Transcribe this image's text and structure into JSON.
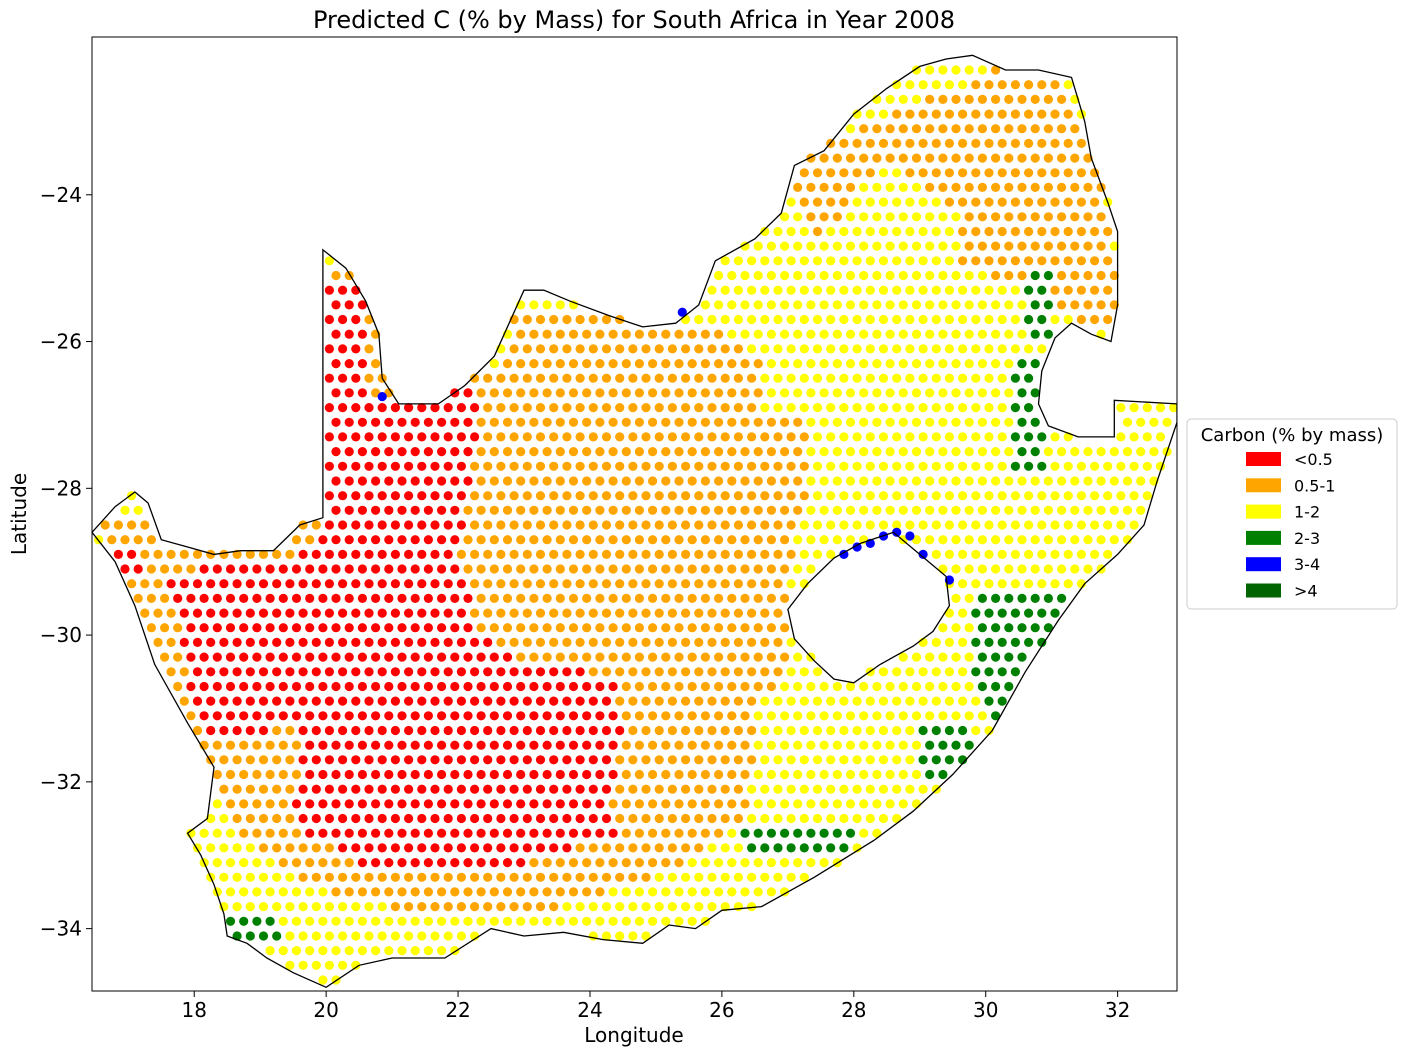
{
  "title": "Predicted C (% by Mass) for South Africa in Year 2008",
  "chart_data": {
    "type": "scatter",
    "title": "Predicted C (% by Mass) for South Africa in Year 2008",
    "xlabel": "Longitude",
    "ylabel": "Latitude",
    "xlim": [
      16.45,
      32.9
    ],
    "ylim": [
      -34.85,
      -21.85
    ],
    "xticks": [
      18,
      20,
      22,
      24,
      26,
      28,
      30,
      32
    ],
    "yticks": [
      -24,
      -26,
      -28,
      -30,
      -32,
      -34
    ],
    "grid": false,
    "legend": {
      "title": "Carbon (% by mass)",
      "placement": "right",
      "entries": [
        {
          "label": "<0.5",
          "color": "#ff0000"
        },
        {
          "label": "0.5-1",
          "color": "#ffa500"
        },
        {
          "label": "1-2",
          "color": "#ffff00"
        },
        {
          "label": "2-3",
          "color": "#008000"
        },
        {
          "label": "3-4",
          "color": "#0000ff"
        },
        {
          "label": ">4",
          "color": "#006400"
        }
      ]
    },
    "grid_spacing_deg": [
      0.2,
      0.2
    ],
    "country_outline": [
      [
        16.45,
        -28.6
      ],
      [
        16.8,
        -28.25
      ],
      [
        17.1,
        -28.05
      ],
      [
        17.3,
        -28.2
      ],
      [
        17.5,
        -28.7
      ],
      [
        17.9,
        -28.8
      ],
      [
        18.3,
        -28.9
      ],
      [
        18.7,
        -28.85
      ],
      [
        19.2,
        -28.85
      ],
      [
        19.6,
        -28.5
      ],
      [
        19.95,
        -28.4
      ],
      [
        19.95,
        -24.75
      ],
      [
        20.3,
        -25.0
      ],
      [
        20.6,
        -25.45
      ],
      [
        20.8,
        -25.9
      ],
      [
        20.85,
        -26.5
      ],
      [
        21.1,
        -26.85
      ],
      [
        21.7,
        -26.85
      ],
      [
        22.1,
        -26.6
      ],
      [
        22.55,
        -26.2
      ],
      [
        22.8,
        -25.7
      ],
      [
        23.0,
        -25.3
      ],
      [
        23.3,
        -25.3
      ],
      [
        23.7,
        -25.45
      ],
      [
        24.3,
        -25.65
      ],
      [
        24.8,
        -25.8
      ],
      [
        25.3,
        -25.75
      ],
      [
        25.65,
        -25.5
      ],
      [
        25.9,
        -24.9
      ],
      [
        26.5,
        -24.6
      ],
      [
        26.9,
        -24.25
      ],
      [
        27.1,
        -23.6
      ],
      [
        27.55,
        -23.4
      ],
      [
        28.0,
        -22.9
      ],
      [
        28.5,
        -22.55
      ],
      [
        29.0,
        -22.25
      ],
      [
        29.4,
        -22.15
      ],
      [
        29.8,
        -22.1
      ],
      [
        30.3,
        -22.3
      ],
      [
        30.8,
        -22.3
      ],
      [
        31.3,
        -22.4
      ],
      [
        31.5,
        -23.0
      ],
      [
        31.6,
        -23.5
      ],
      [
        31.85,
        -24.1
      ],
      [
        32.0,
        -24.5
      ],
      [
        32.0,
        -25.5
      ],
      [
        31.9,
        -26.0
      ],
      [
        31.6,
        -25.9
      ],
      [
        31.3,
        -25.75
      ],
      [
        31.05,
        -25.95
      ],
      [
        30.85,
        -26.4
      ],
      [
        30.8,
        -26.85
      ],
      [
        30.95,
        -27.15
      ],
      [
        31.4,
        -27.3
      ],
      [
        31.95,
        -27.3
      ],
      [
        31.95,
        -26.8
      ],
      [
        32.9,
        -26.85
      ],
      [
        32.9,
        -27.1
      ],
      [
        32.6,
        -27.9
      ],
      [
        32.4,
        -28.5
      ],
      [
        32.0,
        -28.9
      ],
      [
        31.5,
        -29.3
      ],
      [
        31.1,
        -29.8
      ],
      [
        30.6,
        -30.5
      ],
      [
        30.1,
        -31.3
      ],
      [
        29.5,
        -31.9
      ],
      [
        28.9,
        -32.4
      ],
      [
        28.3,
        -32.8
      ],
      [
        27.4,
        -33.3
      ],
      [
        26.6,
        -33.7
      ],
      [
        26.0,
        -33.75
      ],
      [
        25.6,
        -34.0
      ],
      [
        25.2,
        -33.95
      ],
      [
        24.8,
        -34.2
      ],
      [
        24.2,
        -34.15
      ],
      [
        23.6,
        -34.05
      ],
      [
        23.0,
        -34.1
      ],
      [
        22.5,
        -34.0
      ],
      [
        21.8,
        -34.4
      ],
      [
        21.0,
        -34.4
      ],
      [
        20.5,
        -34.5
      ],
      [
        20.0,
        -34.8
      ],
      [
        19.5,
        -34.6
      ],
      [
        19.1,
        -34.4
      ],
      [
        18.8,
        -34.2
      ],
      [
        18.5,
        -34.1
      ],
      [
        18.45,
        -33.8
      ],
      [
        18.3,
        -33.4
      ],
      [
        18.1,
        -33.0
      ],
      [
        17.9,
        -32.7
      ],
      [
        18.2,
        -32.5
      ],
      [
        18.3,
        -31.8
      ],
      [
        17.9,
        -31.2
      ],
      [
        17.4,
        -30.4
      ],
      [
        17.1,
        -29.6
      ],
      [
        16.8,
        -29.0
      ],
      [
        16.45,
        -28.6
      ]
    ],
    "lesotho_outline": [
      [
        27.0,
        -29.65
      ],
      [
        27.3,
        -29.3
      ],
      [
        27.7,
        -28.95
      ],
      [
        28.1,
        -28.75
      ],
      [
        28.6,
        -28.6
      ],
      [
        29.0,
        -28.9
      ],
      [
        29.4,
        -29.2
      ],
      [
        29.45,
        -29.6
      ],
      [
        29.2,
        -29.95
      ],
      [
        28.9,
        -30.15
      ],
      [
        28.4,
        -30.4
      ],
      [
        28.0,
        -30.65
      ],
      [
        27.7,
        -30.6
      ],
      [
        27.4,
        -30.35
      ],
      [
        27.1,
        -30.05
      ],
      [
        27.0,
        -29.65
      ]
    ],
    "class_regions": {
      "red": [
        [
          [
            20.0,
            -25.1
          ],
          [
            20.6,
            -25.1
          ],
          [
            20.6,
            -26.7
          ],
          [
            21.5,
            -26.8
          ],
          [
            22.3,
            -26.6
          ],
          [
            22.3,
            -27.3
          ],
          [
            22.0,
            -29.0
          ],
          [
            22.3,
            -30.0
          ],
          [
            22.8,
            -30.3
          ],
          [
            23.5,
            -30.3
          ],
          [
            24.4,
            -30.7
          ],
          [
            24.5,
            -31.3
          ],
          [
            24.3,
            -32.5
          ],
          [
            24.5,
            -32.7
          ],
          [
            22.7,
            -33.2
          ],
          [
            21.0,
            -33.2
          ],
          [
            20.5,
            -33.1
          ],
          [
            19.5,
            -32.6
          ],
          [
            19.6,
            -31.2
          ],
          [
            18.5,
            -31.5
          ],
          [
            18.0,
            -31.2
          ],
          [
            17.8,
            -30.0
          ],
          [
            17.6,
            -29.3
          ],
          [
            18.1,
            -29.05
          ],
          [
            19.4,
            -28.95
          ],
          [
            19.9,
            -28.65
          ],
          [
            20.0,
            -27.0
          ]
        ],
        [
          [
            16.8,
            -28.7
          ],
          [
            17.2,
            -28.7
          ],
          [
            17.2,
            -29.1
          ],
          [
            16.8,
            -29.1
          ]
        ]
      ],
      "orange": [
        [
          [
            16.5,
            -28.3
          ],
          [
            20.0,
            -28.3
          ],
          [
            20.0,
            -25.0
          ],
          [
            20.9,
            -25.0
          ],
          [
            21.2,
            -26.5
          ],
          [
            22.6,
            -26.3
          ],
          [
            22.9,
            -25.5
          ],
          [
            23.6,
            -25.5
          ],
          [
            24.9,
            -25.8
          ],
          [
            25.7,
            -25.7
          ],
          [
            26.1,
            -26.0
          ],
          [
            26.6,
            -26.3
          ],
          [
            26.6,
            -27.3
          ],
          [
            27.3,
            -27.0
          ],
          [
            27.3,
            -28.0
          ],
          [
            27.0,
            -29.3
          ],
          [
            27.0,
            -30.5
          ],
          [
            26.5,
            -31.0
          ],
          [
            26.4,
            -32.5
          ],
          [
            25.0,
            -33.3
          ],
          [
            23.5,
            -33.7
          ],
          [
            21.5,
            -33.8
          ],
          [
            20.0,
            -33.5
          ],
          [
            19.0,
            -33.0
          ],
          [
            18.3,
            -32.2
          ],
          [
            17.5,
            -31.0
          ],
          [
            16.9,
            -29.6
          ]
        ],
        [
          [
            27.2,
            -23.4
          ],
          [
            30.5,
            -22.15
          ],
          [
            31.3,
            -22.6
          ],
          [
            31.9,
            -24.3
          ],
          [
            32.1,
            -26.0
          ],
          [
            31.0,
            -25.5
          ],
          [
            30.2,
            -25.2
          ],
          [
            29.5,
            -24.2
          ],
          [
            28.5,
            -23.5
          ],
          [
            27.5,
            -24.6
          ],
          [
            27.1,
            -24.2
          ]
        ],
        [
          [
            29.6,
            -24.1
          ],
          [
            30.3,
            -24.1
          ],
          [
            30.3,
            -24.9
          ],
          [
            29.6,
            -24.9
          ]
        ],
        [
          [
            24.9,
            -25.8
          ],
          [
            26.0,
            -25.8
          ],
          [
            26.0,
            -26.6
          ],
          [
            25.0,
            -26.6
          ]
        ],
        [
          [
            25.8,
            -26.8
          ],
          [
            27.2,
            -27.0
          ],
          [
            27.0,
            -28.4
          ],
          [
            25.8,
            -28.2
          ]
        ]
      ],
      "yellow": [
        [
          [
            29.4,
            -22.2
          ],
          [
            29.7,
            -22.2
          ],
          [
            29.7,
            -22.6
          ],
          [
            29.4,
            -22.6
          ]
        ]
      ],
      "green": [
        [
          [
            30.6,
            -25.0
          ],
          [
            31.0,
            -25.0
          ],
          [
            31.0,
            -26.0
          ],
          [
            30.6,
            -26.0
          ]
        ],
        [
          [
            30.4,
            -26.1
          ],
          [
            30.9,
            -26.1
          ],
          [
            30.9,
            -27.8
          ],
          [
            30.4,
            -27.8
          ]
        ],
        [
          [
            29.8,
            -29.3
          ],
          [
            31.2,
            -29.3
          ],
          [
            31.2,
            -29.6
          ],
          [
            30.9,
            -30.1
          ],
          [
            30.4,
            -31.2
          ],
          [
            30.0,
            -31.3
          ],
          [
            29.8,
            -30.5
          ]
        ],
        [
          [
            29.0,
            -31.1
          ],
          [
            29.8,
            -31.1
          ],
          [
            29.8,
            -31.9
          ],
          [
            29.0,
            -31.9
          ]
        ],
        [
          [
            26.3,
            -32.5
          ],
          [
            28.0,
            -32.5
          ],
          [
            28.0,
            -33.0
          ],
          [
            26.3,
            -33.0
          ]
        ],
        [
          [
            18.3,
            -33.7
          ],
          [
            19.3,
            -33.7
          ],
          [
            19.3,
            -34.2
          ],
          [
            18.3,
            -34.2
          ]
        ]
      ],
      "blue_points": [
        [
          20.85,
          -26.75
        ],
        [
          25.4,
          -25.6
        ],
        [
          27.85,
          -28.9
        ],
        [
          28.05,
          -28.8
        ],
        [
          28.25,
          -28.75
        ],
        [
          28.45,
          -28.65
        ],
        [
          28.65,
          -28.6
        ],
        [
          28.85,
          -28.65
        ],
        [
          29.05,
          -28.9
        ],
        [
          29.45,
          -29.25
        ]
      ]
    }
  }
}
